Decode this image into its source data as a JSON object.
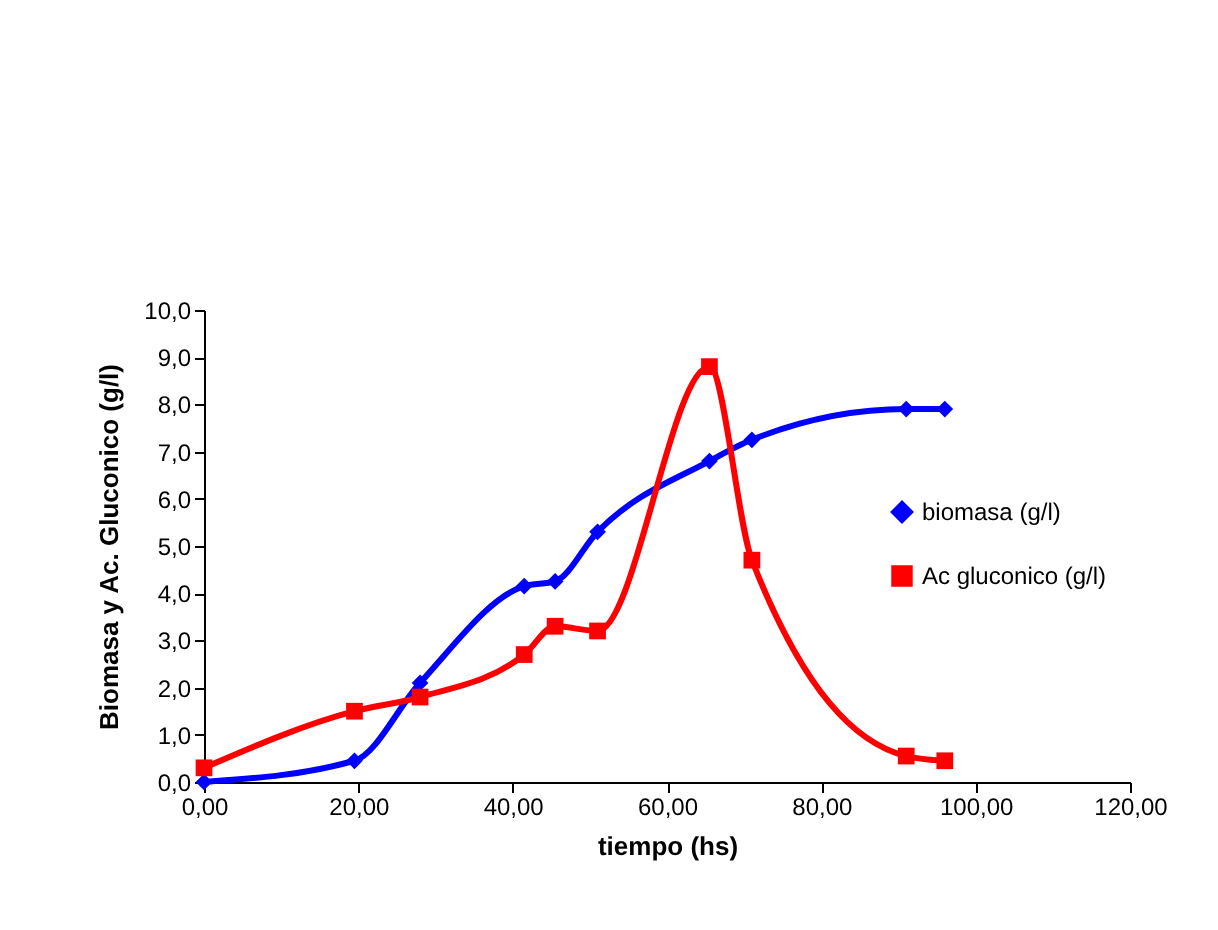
{
  "chart_data": {
    "type": "line",
    "xlabel": "tiempo (hs)",
    "ylabel": "Biomasa y Ac. Gluconico (g/l)",
    "xlim": [
      0,
      120
    ],
    "ylim": [
      0,
      10
    ],
    "xticks": [
      {
        "value": 0,
        "label": "0,00"
      },
      {
        "value": 20,
        "label": "20,00"
      },
      {
        "value": 40,
        "label": "40,00"
      },
      {
        "value": 60,
        "label": "60,00"
      },
      {
        "value": 80,
        "label": "80,00"
      },
      {
        "value": 100,
        "label": "100,00"
      },
      {
        "value": 120,
        "label": "120,00"
      }
    ],
    "yticks": [
      {
        "value": 0,
        "label": "0,0"
      },
      {
        "value": 1,
        "label": "1,0"
      },
      {
        "value": 2,
        "label": "2,0"
      },
      {
        "value": 3,
        "label": "3,0"
      },
      {
        "value": 4,
        "label": "4,0"
      },
      {
        "value": 5,
        "label": "5,0"
      },
      {
        "value": 6,
        "label": "6,0"
      },
      {
        "value": 7,
        "label": "7,0"
      },
      {
        "value": 8,
        "label": "8,0"
      },
      {
        "value": 9,
        "label": "9,0"
      },
      {
        "value": 10,
        "label": "10,0"
      }
    ],
    "x": [
      0,
      19.5,
      28,
      41.5,
      45.5,
      51,
      65.5,
      71,
      91,
      96
    ],
    "series": [
      {
        "name": "biomasa (g/l)",
        "color": "#0000ff",
        "marker": "diamond",
        "values": [
          0,
          0.45,
          2.1,
          4.15,
          4.25,
          5.3,
          6.8,
          7.25,
          7.9,
          7.9
        ]
      },
      {
        "name": "Ac gluconico (g/l)",
        "color": "#ff0000",
        "marker": "square",
        "values": [
          0.3,
          1.5,
          1.8,
          2.7,
          3.3,
          3.2,
          8.8,
          4.7,
          0.55,
          0.45
        ]
      }
    ],
    "grid": false,
    "legend": "right",
    "line_style": "solid"
  }
}
